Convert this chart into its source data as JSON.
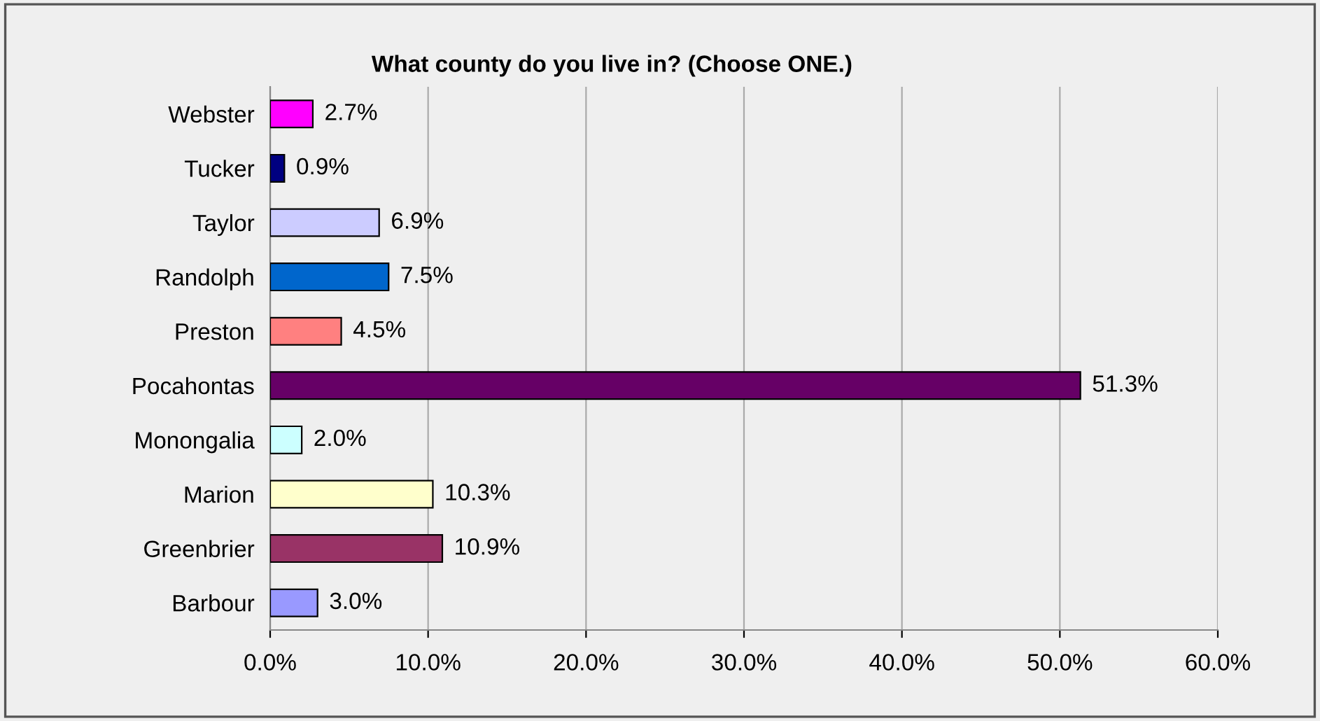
{
  "chart_data": {
    "type": "bar",
    "orientation": "horizontal",
    "title": "What county do you live in? (Choose ONE.)",
    "categories": [
      "Webster",
      "Tucker",
      "Taylor",
      "Randolph",
      "Preston",
      "Pocahontas",
      "Monongalia",
      "Marion",
      "Greenbrier",
      "Barbour"
    ],
    "values": [
      2.7,
      0.9,
      6.9,
      7.5,
      4.5,
      51.3,
      2.0,
      10.3,
      10.9,
      3.0
    ],
    "value_labels": [
      "2.7%",
      "0.9%",
      "6.9%",
      "7.5%",
      "4.5%",
      "51.3%",
      "2.0%",
      "10.3%",
      "10.9%",
      "3.0%"
    ],
    "colors": [
      "#ff00ff",
      "#000080",
      "#ccccff",
      "#0066cc",
      "#ff8080",
      "#660066",
      "#ccffff",
      "#ffffcc",
      "#993366",
      "#9999ff"
    ],
    "xlim": [
      0,
      60
    ],
    "xticks": [
      {
        "value": 0,
        "label": "0.0%"
      },
      {
        "value": 10,
        "label": "10.0%"
      },
      {
        "value": 20,
        "label": "20.0%"
      },
      {
        "value": 30,
        "label": "30.0%"
      },
      {
        "value": 40,
        "label": "40.0%"
      },
      {
        "value": 50,
        "label": "50.0%"
      },
      {
        "value": 60,
        "label": "60.0%"
      }
    ],
    "grid": "x",
    "legend": false
  }
}
